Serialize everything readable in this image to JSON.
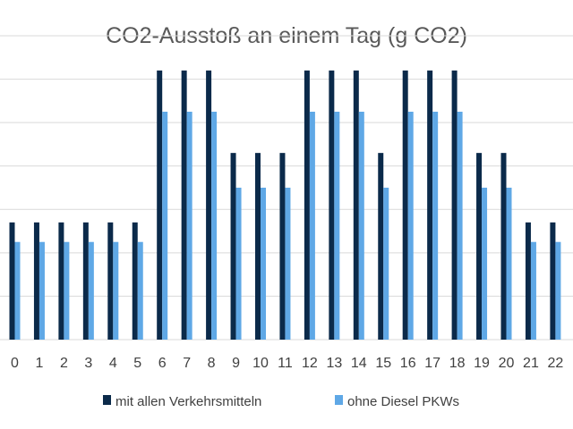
{
  "chart_data": {
    "type": "bar",
    "title": "CO2-Ausstoß an einem Tag (g CO2)",
    "xlabel": "",
    "ylabel": "",
    "categories": [
      "0",
      "1",
      "2",
      "3",
      "4",
      "5",
      "6",
      "7",
      "8",
      "9",
      "10",
      "11",
      "12",
      "13",
      "14",
      "15",
      "16",
      "17",
      "18",
      "19",
      "20",
      "21",
      "22"
    ],
    "series": [
      {
        "name": "mit allen Verkehrsmitteln",
        "color": "#0b2a4a",
        "values": [
          2.7,
          2.7,
          2.7,
          2.7,
          2.7,
          2.7,
          6.2,
          6.2,
          6.2,
          4.3,
          4.3,
          4.3,
          6.2,
          6.2,
          6.2,
          4.3,
          6.2,
          6.2,
          6.2,
          4.3,
          4.3,
          2.7,
          2.7
        ]
      },
      {
        "name": "ohne Diesel PKWs",
        "color": "#5fa8e6",
        "values": [
          2.25,
          2.25,
          2.25,
          2.25,
          2.25,
          2.25,
          5.25,
          5.25,
          5.25,
          3.5,
          3.5,
          3.5,
          5.25,
          5.25,
          5.25,
          3.5,
          5.25,
          5.25,
          5.25,
          3.5,
          3.5,
          2.25,
          2.25
        ]
      }
    ],
    "ylim": [
      0,
      7
    ],
    "grid": true,
    "legend_position": "bottom"
  }
}
